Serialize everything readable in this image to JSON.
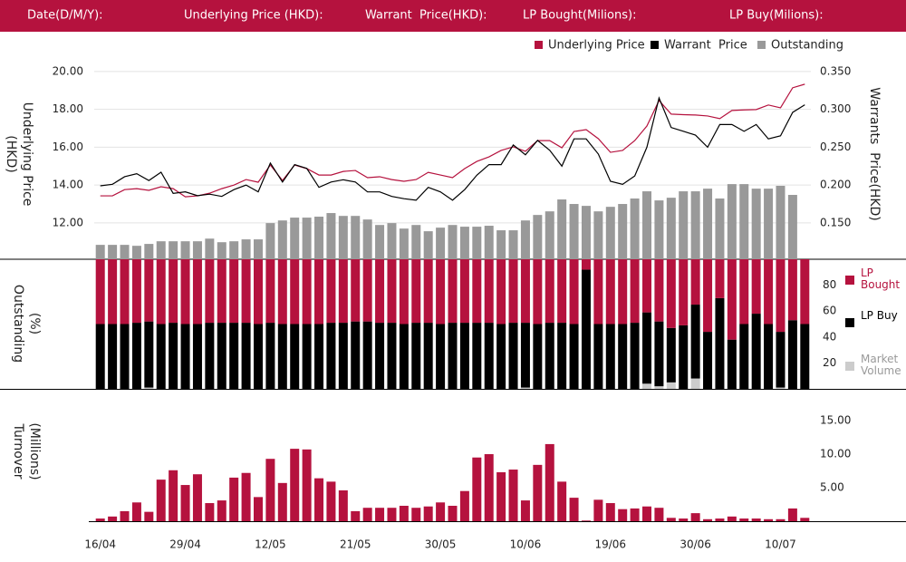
{
  "header": {
    "labels": [
      "Date(D/M/Y):",
      "Underlying Price (HKD):",
      "Warrant  Price(HKD):",
      "LP Bought(Milions):",
      "LP Buy(Milions):"
    ]
  },
  "chart_data": [
    {
      "type": "line",
      "y_label": [
        "Underlying Price",
        "(HKD)"
      ],
      "y2_label": "Warrants  Price(HKD)",
      "ylim": [
        10.08,
        21
      ],
      "yticks": [
        {
          "value": 12,
          "label": "12.00"
        },
        {
          "value": 14,
          "label": "14.00"
        },
        {
          "value": 16,
          "label": "16.00"
        },
        {
          "value": 18,
          "label": "18.00"
        },
        {
          "value": 20,
          "label": "20.00"
        }
      ],
      "y2lim": [
        0.102,
        0.375
      ],
      "y2ticks": [
        {
          "value": 0.15,
          "label": "0.150"
        },
        {
          "value": 0.2,
          "label": "0.200"
        },
        {
          "value": 0.25,
          "label": "0.250"
        },
        {
          "value": 0.3,
          "label": "0.300"
        },
        {
          "value": 0.35,
          "label": "0.350"
        }
      ],
      "grid": true,
      "series": [
        {
          "name": "Underlying Price",
          "color": "#b5123e",
          "type": "line",
          "axis": "y",
          "values": [
            13.43,
            13.43,
            13.76,
            13.81,
            13.72,
            13.91,
            13.81,
            13.38,
            13.43,
            13.57,
            13.81,
            14.0,
            14.29,
            14.15,
            15.06,
            14.24,
            15.06,
            14.87,
            14.53,
            14.53,
            14.72,
            14.77,
            14.39,
            14.44,
            14.29,
            14.2,
            14.29,
            14.67,
            14.53,
            14.39,
            14.87,
            15.25,
            15.49,
            15.83,
            16.02,
            15.78,
            16.35,
            16.35,
            15.97,
            16.83,
            16.93,
            16.45,
            15.73,
            15.83,
            16.35,
            17.12,
            18.47,
            17.75,
            17.72,
            17.7,
            17.65,
            17.51,
            17.94,
            17.97,
            17.99,
            18.23,
            18.08,
            19.14,
            19.33
          ]
        },
        {
          "name": "Warrant  Price",
          "color": "#000000",
          "type": "line",
          "axis": "y2",
          "values": [
            0.199,
            0.201,
            0.211,
            0.215,
            0.206,
            0.217,
            0.189,
            0.191,
            0.186,
            0.188,
            0.185,
            0.194,
            0.2,
            0.191,
            0.229,
            0.204,
            0.227,
            0.222,
            0.197,
            0.204,
            0.207,
            0.204,
            0.191,
            0.191,
            0.185,
            0.182,
            0.18,
            0.197,
            0.191,
            0.18,
            0.194,
            0.213,
            0.227,
            0.227,
            0.253,
            0.24,
            0.259,
            0.246,
            0.225,
            0.261,
            0.261,
            0.241,
            0.205,
            0.201,
            0.212,
            0.25,
            0.315,
            0.276,
            0.271,
            0.266,
            0.25,
            0.28,
            0.28,
            0.271,
            0.28,
            0.261,
            0.265,
            0.296,
            0.306
          ]
        },
        {
          "name": "Outstanding",
          "color": "#999999",
          "type": "bar",
          "axis": "y",
          "values": [
            10.84,
            10.84,
            10.84,
            10.79,
            10.89,
            11.03,
            11.03,
            11.03,
            11.03,
            11.17,
            10.98,
            11.03,
            11.13,
            11.13,
            11.99,
            12.13,
            12.28,
            12.28,
            12.33,
            12.52,
            12.37,
            12.37,
            12.18,
            11.89,
            11.99,
            11.7,
            11.89,
            11.56,
            11.75,
            11.89,
            11.8,
            11.8,
            11.85,
            11.61,
            11.61,
            12.13,
            12.42,
            12.61,
            13.24,
            13.0,
            12.9,
            12.61,
            12.85,
            13.0,
            13.29,
            13.67,
            13.19,
            13.33,
            13.67,
            13.67,
            13.81,
            13.29,
            14.05,
            14.05,
            13.81,
            13.81,
            13.96,
            13.48,
            null
          ]
        }
      ]
    },
    {
      "type": "stacked_bar",
      "y_label": [
        "Outstanding",
        "(%)"
      ],
      "ylim": [
        0,
        100
      ],
      "yticks": [
        20,
        40,
        60,
        80
      ],
      "series": [
        {
          "name": "LP Bought",
          "color": "#b5123e",
          "values": [
            50,
            50,
            50,
            49,
            48,
            50,
            49,
            50,
            50,
            49,
            49,
            49,
            49,
            50,
            49,
            50,
            50,
            50,
            50,
            49,
            49,
            48,
            48,
            49,
            49,
            50,
            49,
            49,
            50,
            49,
            49,
            49,
            49,
            50,
            49,
            49,
            50,
            49,
            49,
            50,
            8,
            50,
            50,
            50,
            49,
            41,
            48,
            53,
            51,
            35,
            56,
            30,
            62,
            50,
            42,
            50,
            56,
            47,
            50
          ]
        },
        {
          "name": "LP Buy",
          "color": "#000000",
          "values": [
            50,
            50,
            50,
            51,
            51,
            50,
            51,
            50,
            50,
            51,
            51,
            51,
            51,
            50,
            51,
            50,
            50,
            50,
            50,
            51,
            51,
            52,
            52,
            51,
            51,
            50,
            51,
            51,
            50,
            51,
            51,
            51,
            51,
            50,
            51,
            50,
            50,
            51,
            51,
            50,
            92,
            50,
            50,
            50,
            51,
            55,
            50,
            42,
            49,
            57,
            44,
            70,
            38,
            50,
            58,
            50,
            43,
            53,
            50
          ]
        },
        {
          "name": "Market Volume",
          "color": "#cccccc",
          "values": [
            0,
            0,
            0,
            0,
            1,
            0,
            0,
            0,
            0,
            0,
            0,
            0,
            0,
            0,
            0,
            0,
            0,
            0,
            0,
            0,
            0,
            0,
            0,
            0,
            0,
            0,
            0,
            0,
            0,
            0,
            0,
            0,
            0,
            0,
            0,
            1,
            0,
            0,
            0,
            0,
            0,
            0,
            0,
            0,
            0,
            4,
            2,
            5,
            0,
            8,
            0,
            0,
            0,
            0,
            0,
            0,
            1,
            0,
            0
          ]
        }
      ]
    },
    {
      "type": "bar",
      "y_label": [
        "Turnover",
        "(Millions)"
      ],
      "ylim": [
        0,
        19.6
      ],
      "yticks": [
        {
          "value": 5,
          "label": "5.00"
        },
        {
          "value": 10,
          "label": "10.00"
        },
        {
          "value": 15,
          "label": "15.00"
        }
      ],
      "categories": [
        "16/04",
        null,
        null,
        null,
        null,
        null,
        null,
        "29/04",
        null,
        null,
        null,
        null,
        null,
        null,
        "12/05",
        null,
        null,
        null,
        null,
        null,
        null,
        "21/05",
        null,
        null,
        null,
        null,
        null,
        null,
        "30/05",
        null,
        null,
        null,
        null,
        null,
        null,
        "10/06",
        null,
        null,
        null,
        null,
        null,
        null,
        "19/06",
        null,
        null,
        null,
        null,
        null,
        null,
        "30/06",
        null,
        null,
        null,
        null,
        null,
        null,
        "10/07",
        null,
        null
      ],
      "color": "#b5123e",
      "values": [
        0.4,
        0.7,
        1.5,
        2.8,
        1.4,
        6.2,
        7.6,
        5.4,
        7.0,
        2.7,
        3.1,
        6.5,
        7.2,
        3.6,
        9.3,
        5.7,
        10.8,
        10.7,
        6.4,
        5.9,
        4.6,
        1.5,
        2.0,
        2.0,
        2.0,
        2.3,
        2.0,
        2.2,
        2.8,
        2.3,
        4.5,
        9.5,
        10.0,
        7.3,
        7.7,
        3.1,
        8.4,
        11.5,
        5.9,
        3.5,
        0.1,
        3.2,
        2.7,
        1.8,
        1.9,
        2.2,
        2.0,
        0.5,
        0.4,
        1.2,
        0.3,
        0.4,
        0.7,
        0.4,
        0.4,
        0.3,
        0.3,
        1.9,
        0.5
      ]
    }
  ]
}
